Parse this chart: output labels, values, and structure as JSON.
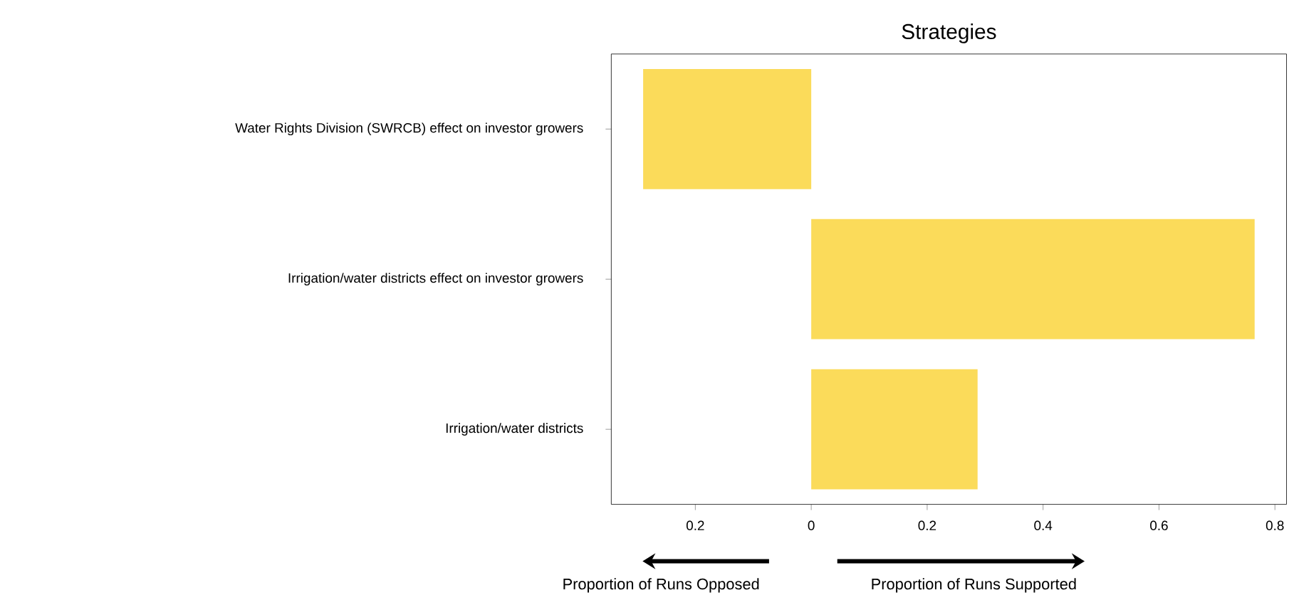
{
  "chart_data": {
    "type": "bar",
    "orientation": "horizontal",
    "title": "Strategies",
    "categories": [
      "Water Rights Division (SWRCB) effect on investor growers",
      "Irrigation/water districts effect on investor growers",
      "Irrigation/water districts"
    ],
    "values": [
      -0.29,
      0.765,
      0.287
    ],
    "color": "#fbdb5a",
    "xlim": [
      -0.345,
      0.82
    ],
    "xticks": [
      {
        "value": -0.2,
        "label": "0.2"
      },
      0,
      0.2,
      0.4,
      0.6,
      0.8
    ],
    "annotations": [
      "Proportion of Runs Opposed",
      "Proportion of Runs Supported"
    ],
    "grid": false
  }
}
